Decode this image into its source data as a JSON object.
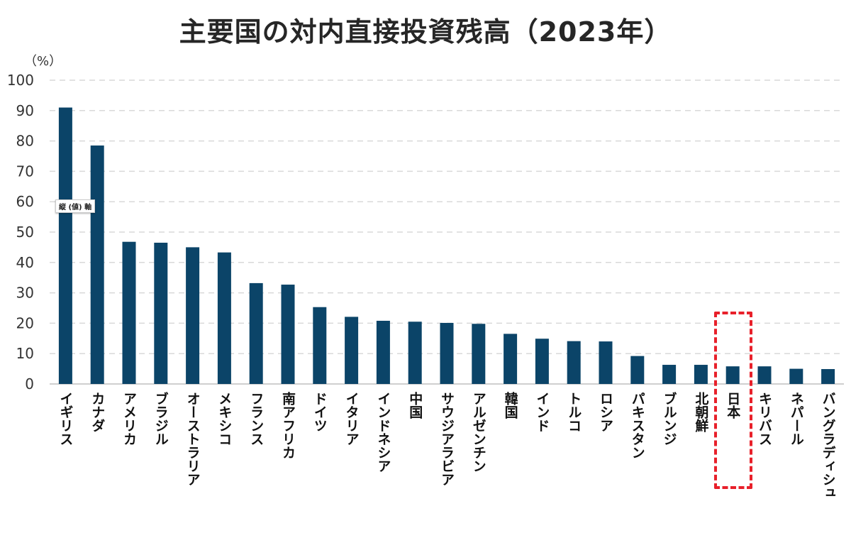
{
  "chart_data": {
    "type": "bar",
    "title": "主要国の対内直接投資残高（2023年）",
    "y_unit": "（%）",
    "ylim": [
      0,
      100
    ],
    "yticks": [
      0,
      10,
      20,
      30,
      40,
      50,
      60,
      70,
      80,
      90,
      100
    ],
    "grid": true,
    "categories": [
      "イギリス",
      "カナダ",
      "アメリカ",
      "ブラジル",
      "オーストラリア",
      "メキシコ",
      "フランス",
      "南アフリカ",
      "ドイツ",
      "イタリア",
      "インドネシア",
      "中国",
      "サウジアラビア",
      "アルゼンチン",
      "韓国",
      "インド",
      "トルコ",
      "ロシア",
      "パキスタン",
      "ブルンジ",
      "北朝鮮",
      "日本",
      "キリバス",
      "ネパール",
      "バングラディシュ"
    ],
    "values": [
      91.0,
      78.5,
      46.8,
      46.5,
      45.0,
      43.3,
      33.2,
      32.7,
      25.3,
      22.1,
      20.8,
      20.5,
      20.1,
      19.8,
      16.5,
      14.9,
      14.1,
      14.0,
      9.2,
      6.3,
      6.3,
      5.8,
      5.8,
      5.0,
      4.9
    ],
    "bar_color": "#0b4468",
    "highlight_category": "日本",
    "highlight_color": "#e8202a",
    "tooltip": "縦 (値) 軸"
  }
}
